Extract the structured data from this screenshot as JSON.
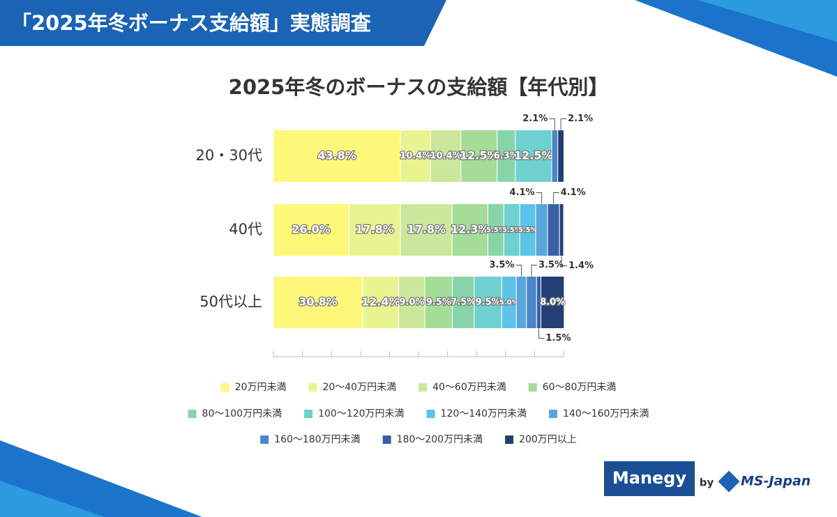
{
  "banner": "「2025年冬ボーナス支給額」実態調査",
  "brand": {
    "name": "Manegy",
    "by": "by",
    "company": "MS-Japan"
  },
  "chart_data": {
    "type": "bar",
    "orientation": "horizontal",
    "stacked": true,
    "title": "2025年冬のボーナスの支給額【年代別】",
    "categories": [
      "20・30代",
      "40代",
      "50代以上"
    ],
    "xlim": [
      0,
      100
    ],
    "xticks": [
      0,
      10,
      20,
      30,
      40,
      50,
      60,
      70,
      80,
      90,
      100
    ],
    "series": [
      {
        "name": "20万円未満",
        "color": "#fdf87a",
        "values": [
          43.8,
          26.0,
          30.8
        ],
        "value_labels": [
          "43.8%",
          "26.0%",
          "30.8%"
        ]
      },
      {
        "name": "20～40万円未満",
        "color": "#e9f490",
        "values": [
          10.4,
          17.8,
          12.4
        ],
        "value_labels": [
          "10.4%",
          "17.8%",
          "12.4%"
        ]
      },
      {
        "name": "40～60万円未満",
        "color": "#cae79b",
        "values": [
          10.4,
          17.8,
          9.0
        ],
        "value_labels": [
          "10.4%",
          "17.8%",
          "9.0%"
        ]
      },
      {
        "name": "60～80万円未満",
        "color": "#a5dc98",
        "values": [
          12.5,
          12.3,
          9.5
        ],
        "value_labels": [
          "12.5%",
          "12.3%",
          "9.5%"
        ]
      },
      {
        "name": "80～100万円未満",
        "color": "#88d4a9",
        "values": [
          6.3,
          5.5,
          7.5
        ],
        "value_labels": [
          "6.3%",
          "5.5%",
          "7.5%"
        ]
      },
      {
        "name": "100～120万円未満",
        "color": "#6ed0cf",
        "values": [
          12.5,
          5.5,
          9.5
        ],
        "value_labels": [
          "12.5%",
          "5.5%",
          "9.5%"
        ]
      },
      {
        "name": "120～140万円未満",
        "color": "#5dc3e8",
        "values": [
          null,
          5.5,
          5.0
        ],
        "value_labels": [
          null,
          "5.5%",
          "5.0%"
        ]
      },
      {
        "name": "140～160万円未満",
        "color": "#58a6dc",
        "values": [
          null,
          4.1,
          3.5
        ],
        "value_labels": [
          null,
          "4.1%",
          "3.5%"
        ]
      },
      {
        "name": "160～180万円未満",
        "color": "#4a86c8",
        "values": [
          2.1,
          null,
          3.5
        ],
        "value_labels": [
          "2.1%",
          null,
          "3.5%"
        ]
      },
      {
        "name": "180～200万円未満",
        "color": "#3761a8",
        "values": [
          null,
          4.1,
          1.5
        ],
        "value_labels": [
          null,
          "4.1%",
          "1.5%"
        ]
      },
      {
        "name": "200万円以上",
        "color": "#233f73",
        "values": [
          2.1,
          1.4,
          8.0
        ],
        "value_labels": [
          "2.1%",
          "1.4%",
          "8.0%"
        ]
      }
    ]
  }
}
